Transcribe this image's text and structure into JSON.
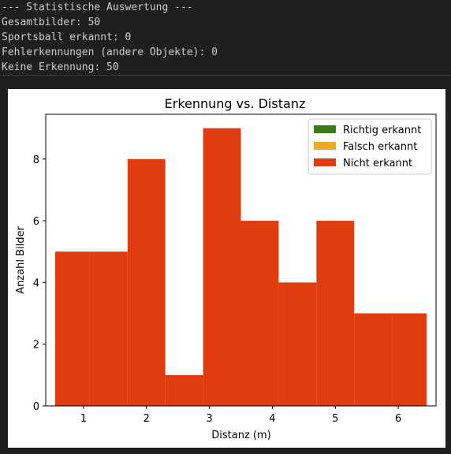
{
  "console": {
    "lines": [
      "--- Statistische Auswertung ---",
      "Gesamtbilder: 50",
      "Sportsball erkannt: 0",
      "Fehlerkennungen (andere Objekte): 0",
      "Keine Erkennung: 50"
    ]
  },
  "colors": {
    "console_bg": "#1f1f1f",
    "console_text": "#cccccc",
    "richtig": "#3a7d17",
    "falsch": "#eaa92a",
    "nicht": "#e03c10"
  },
  "chart_data": {
    "type": "bar",
    "title": "Erkennung vs. Distanz",
    "xlabel": "Distanz (m)",
    "ylabel": "Anzahl Bilder",
    "xlim": [
      0.4,
      6.6
    ],
    "ylim": [
      0,
      9.45
    ],
    "xticks": [
      1,
      2,
      3,
      4,
      5,
      6
    ],
    "yticks": [
      0,
      2,
      4,
      6,
      8
    ],
    "stacked": true,
    "bins": [
      [
        0.55,
        1.1
      ],
      [
        1.1,
        1.7
      ],
      [
        1.7,
        2.3
      ],
      [
        2.3,
        2.9
      ],
      [
        2.9,
        3.5
      ],
      [
        3.5,
        4.1
      ],
      [
        4.1,
        4.7
      ],
      [
        4.7,
        5.3
      ],
      [
        5.3,
        5.9
      ],
      [
        5.9,
        6.45
      ]
    ],
    "series": [
      {
        "name": "Richtig erkannt",
        "color": "#3a7d17",
        "values": [
          0,
          0,
          0,
          0,
          0,
          0,
          0,
          0,
          0,
          0
        ]
      },
      {
        "name": "Falsch erkannt",
        "color": "#eaa92a",
        "values": [
          0,
          0,
          0,
          0,
          0,
          0,
          0,
          0,
          0,
          0
        ]
      },
      {
        "name": "Nicht erkannt",
        "color": "#e03c10",
        "values": [
          5,
          5,
          8,
          1,
          9,
          6,
          4,
          6,
          3,
          3
        ]
      }
    ],
    "legend": "top-right"
  }
}
